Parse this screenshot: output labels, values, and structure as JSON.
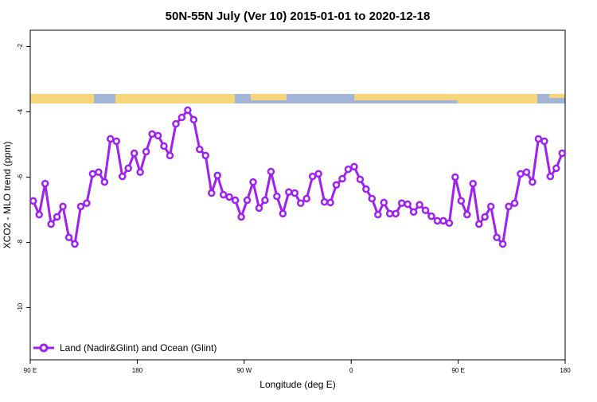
{
  "chart_data": {
    "type": "line",
    "title": "50N-55N July (Ver 10)   2015-01-01 to 2020-12-18",
    "x_label": "Longitude (deg E)",
    "y_label": "XCO2 - MLO trend (ppm)",
    "x": [
      92.5,
      97.5,
      102.5,
      107.5,
      112.5,
      117.5,
      122.5,
      127.5,
      132.5,
      137.5,
      142.5,
      147.5,
      152.5,
      157.5,
      162.5,
      167.5,
      172.5,
      177.5,
      182.5,
      187.5,
      192.5,
      197.5,
      202.5,
      207.5,
      212.5,
      217.5,
      222.5,
      227.5,
      232.5,
      237.5,
      242.5,
      247.5,
      252.5,
      257.5,
      262.5,
      267.5,
      272.5,
      277.5,
      282.5,
      287.5,
      292.5,
      297.5,
      302.5,
      307.5,
      312.5,
      317.5,
      322.5,
      327.5,
      332.5,
      337.5,
      342.5,
      347.5,
      352.5,
      357.5,
      362.5,
      367.5,
      372.5,
      377.5,
      382.5,
      387.5,
      392.5,
      397.5,
      402.5,
      407.5,
      412.5,
      417.5,
      422.5,
      427.5,
      432.5,
      437.5,
      442.5,
      447.5,
      452.5,
      457.5,
      462.5,
      467.5,
      472.5,
      477.5,
      482.5,
      487.5,
      492.5,
      497.5,
      502.5,
      507.5,
      512.5,
      517.5,
      522.5,
      527.5,
      532.5,
      537.5
    ],
    "series": [
      {
        "name": "Land (Nadir&Glint) and Ocean (Glint)",
        "color": "#a020f0",
        "values": [
          -6.73,
          -7.15,
          -6.2,
          -7.44,
          -7.22,
          -6.9,
          -7.85,
          -8.05,
          -6.9,
          -6.8,
          -5.9,
          -5.85,
          -6.15,
          -4.83,
          -4.9,
          -5.98,
          -5.73,
          -5.27,
          -5.85,
          -5.22,
          -4.68,
          -4.73,
          -5.05,
          -5.34,
          -4.37,
          -4.17,
          -3.95,
          -4.24,
          -5.15,
          -5.34,
          -6.49,
          -5.95,
          -6.54,
          -6.61,
          -6.71,
          -7.22,
          -6.71,
          -6.15,
          -6.95,
          -6.71,
          -5.83,
          -6.59,
          -7.12,
          -6.46,
          -6.49,
          -6.8,
          -6.66,
          -5.98,
          -5.9,
          -6.76,
          -6.78,
          -6.24,
          -6.05,
          -5.76,
          -5.68,
          -6.07,
          -6.37,
          -6.66,
          -7.15,
          -6.78,
          -7.12,
          -7.12,
          -6.8,
          -6.83,
          -7.07,
          -6.85,
          -7.02,
          -7.2,
          -7.34,
          -7.34,
          -7.41,
          -6.0,
          -6.73,
          -7.15,
          -6.2,
          -7.44,
          -7.22,
          -6.9,
          -7.85,
          -8.05,
          -6.9,
          -6.8,
          -5.9,
          -5.85,
          -6.15,
          -4.83,
          -4.9,
          -5.98,
          -5.73,
          -5.27
        ]
      }
    ],
    "xlim": [
      90,
      540
    ],
    "xticks": [
      {
        "value": 90,
        "label": "90 E"
      },
      180,
      {
        "value": 270,
        "label": "90 W"
      },
      {
        "value": 360,
        "label": "0"
      },
      {
        "value": 450,
        "label": "90 E"
      },
      {
        "value": 540,
        "label": "180"
      }
    ],
    "ylim": [
      -11.6,
      -1.5
    ],
    "yticks": [
      -2,
      -4,
      -6,
      -8,
      -10
    ],
    "legend_position": "bottom-left"
  }
}
